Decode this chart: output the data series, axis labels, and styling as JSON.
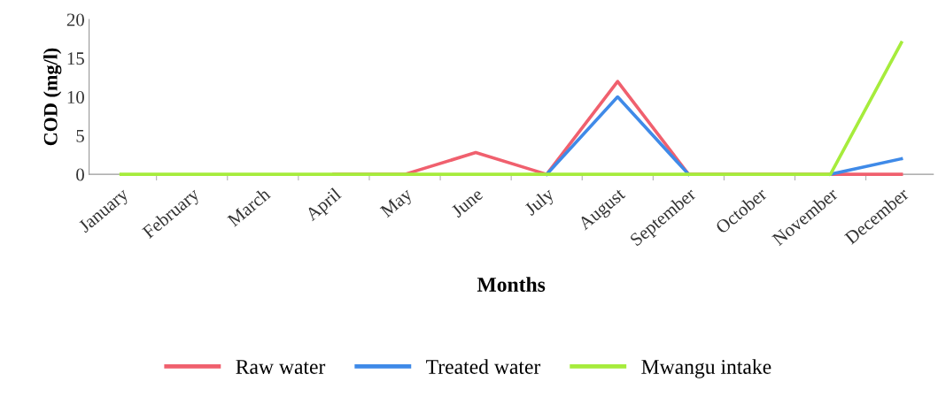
{
  "chart_data": {
    "type": "line",
    "xlabel": "Months",
    "ylabel": "COD (mg/l)",
    "categories": [
      "January",
      "February",
      "March",
      "April",
      "May",
      "June",
      "July",
      "August",
      "September",
      "October",
      "November",
      "December"
    ],
    "series": [
      {
        "name": "Raw water",
        "color": "#f0606e",
        "values": [
          null,
          null,
          null,
          0,
          0,
          2.8,
          0,
          12,
          0,
          0,
          0,
          0
        ]
      },
      {
        "name": "Treated water",
        "color": "#3f8ae8",
        "values": [
          null,
          null,
          null,
          null,
          null,
          null,
          0,
          10,
          0,
          null,
          0,
          2
        ]
      },
      {
        "name": "Mwangu intake",
        "color": "#a6ec3c",
        "values": [
          0,
          0,
          0,
          0,
          0,
          0,
          0,
          0,
          0,
          0,
          0,
          17
        ]
      }
    ],
    "ylim": [
      0,
      20
    ],
    "yticks": [
      0,
      5,
      10,
      15,
      20
    ],
    "grid": false,
    "legend": "bottom",
    "marker": "none",
    "line_style": "solid"
  }
}
